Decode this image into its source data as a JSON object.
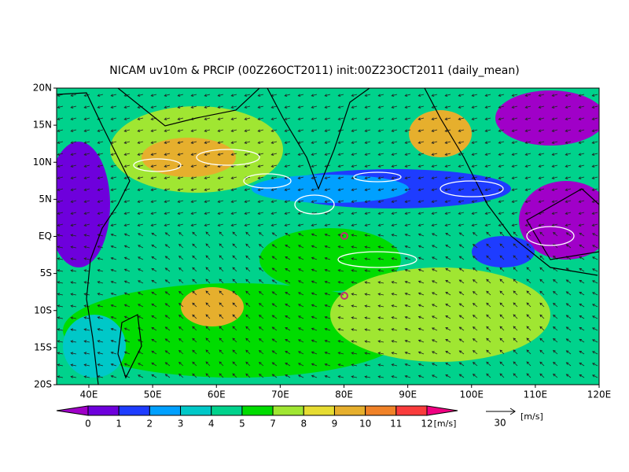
{
  "title": "NICAM uv10m & PRCIP (00Z26OCT2011) init:00Z23OCT2011 (daily_mean)",
  "lat_labels": [
    "20N",
    "15N",
    "10N",
    "5N",
    "EQ",
    "5S",
    "10S",
    "15S",
    "20S"
  ],
  "lon_labels": [
    "40E",
    "50E",
    "60E",
    "70E",
    "80E",
    "90E",
    "100E",
    "110E",
    "120E"
  ],
  "colorbar": {
    "labels": [
      "0",
      "1",
      "2",
      "3",
      "4",
      "5",
      "7",
      "8",
      "9",
      "10",
      "11",
      "12"
    ],
    "unit": "[m/s]",
    "colors": [
      "#a000c8",
      "#6e00dc",
      "#1e3cff",
      "#00a0ff",
      "#00c8c8",
      "#00d28c",
      "#00dc00",
      "#a0e632",
      "#e6dc32",
      "#e6af2d",
      "#f08228",
      "#fa3c3c",
      "#f00082"
    ]
  },
  "reference_vector": {
    "magnitude": "30",
    "unit": "[m/s]"
  }
}
